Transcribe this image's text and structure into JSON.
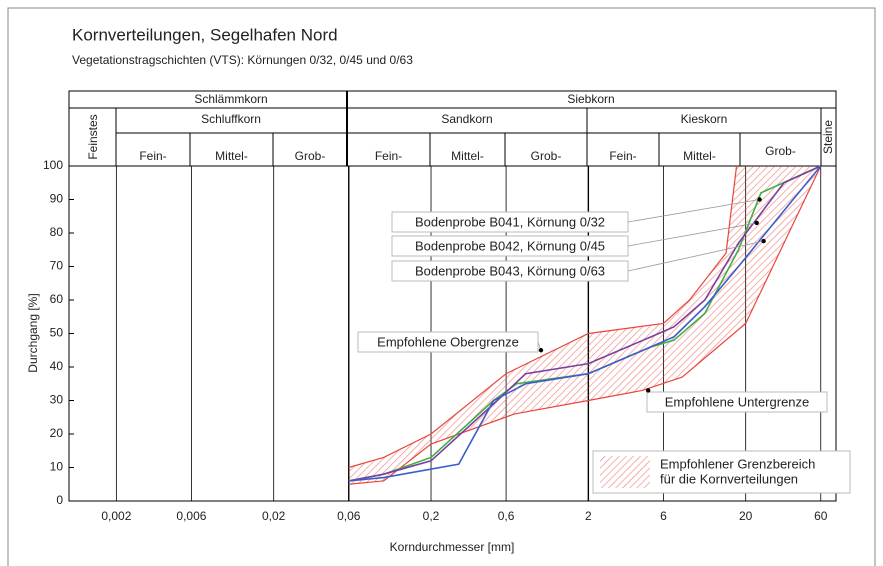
{
  "chart_data": {
    "type": "line",
    "title": "Kornverteilungen, Segelhafen Nord",
    "subtitle": "Vegetationstragschichten (VTS): Körnungen 0/32, 0/45 und 0/63",
    "x_label": "Korndurchmesser [mm]",
    "y_label": "Durchgang [%]",
    "x_log": true,
    "grid": "x",
    "xlim": [
      0.001,
      75
    ],
    "ylim": [
      0,
      100
    ],
    "xticks": [
      {
        "value": 0.002,
        "label": "0,002"
      },
      {
        "value": 0.006,
        "label": "0,006"
      },
      {
        "value": 0.02,
        "label": "0,02"
      },
      {
        "value": 0.06,
        "label": "0,06"
      },
      {
        "value": 0.2,
        "label": "0,2"
      },
      {
        "value": 0.6,
        "label": "0,6"
      },
      2,
      6,
      20,
      60
    ],
    "yticks": [
      0,
      10,
      20,
      30,
      40,
      50,
      60,
      70,
      80,
      90,
      100
    ],
    "header": {
      "feinstes": "Feinstes",
      "schlaemmkorn": "Schlämmkorn",
      "siebkorn": "Siebkorn",
      "schluffkorn": "Schluffkorn",
      "sandkorn": "Sandkorn",
      "kieskorn": "Kieskorn",
      "steine": "Steine",
      "subdivisions": [
        "Fein-",
        "Mittel-",
        "Grob-",
        "Fein-",
        "Mittel-",
        "Grob-",
        "Fein-",
        "Mittel-",
        "Grob-"
      ]
    },
    "legend_label": [
      "Empfohlener Grenzbereich",
      "für die Kornverteilungen"
    ],
    "band_color": "#e8453c",
    "series": [
      {
        "name": "Empfohlene Obergrenze",
        "color": "#e8453c",
        "x": [
          0.06,
          0.1,
          0.2,
          0.6,
          2,
          6,
          8.8,
          15,
          17.5
        ],
        "values": [
          10,
          13,
          20,
          38,
          50,
          53,
          60,
          74,
          100
        ],
        "label_point": {
          "x": 1,
          "y": 45
        }
      },
      {
        "name": "Empfohlene Untergrenze",
        "color": "#e8453c",
        "x": [
          0.06,
          0.1,
          0.2,
          0.68,
          2,
          4.4,
          7.9,
          20,
          60
        ],
        "values": [
          5,
          6,
          17,
          26,
          30,
          33,
          37,
          53,
          100
        ],
        "label_point": {
          "x": 4.8,
          "y": 33
        }
      },
      {
        "name": "Bodenprobe B041, Körnung 0/32",
        "color": "#3cb043",
        "x": [
          0.06,
          0.1,
          0.2,
          0.5,
          0.7,
          2,
          5,
          7,
          11,
          18,
          25,
          60
        ],
        "values": [
          6,
          8,
          13,
          30,
          35,
          38,
          46,
          48,
          56,
          75,
          92,
          100
        ],
        "label_point": {
          "x": 24.5,
          "y": 90
        }
      },
      {
        "name": "Bodenprobe B042, Körnung 0/45",
        "color": "#7b3fa0",
        "x": [
          0.06,
          0.1,
          0.2,
          0.5,
          0.8,
          2,
          5,
          7,
          11,
          18,
          35,
          60
        ],
        "values": [
          6,
          8,
          12,
          29,
          38,
          41,
          49,
          52,
          60,
          77,
          95,
          100
        ],
        "label_point": {
          "x": 23.5,
          "y": 83
        }
      },
      {
        "name": "Bodenprobe B043, Körnung 0/63",
        "color": "#3a5fcd",
        "x": [
          0.06,
          0.1,
          0.3,
          0.5,
          0.8,
          2,
          5,
          7,
          11,
          18,
          40,
          60
        ],
        "values": [
          6,
          7,
          11,
          30,
          35,
          38,
          46,
          49,
          58,
          70,
          90,
          100
        ],
        "label_point": {
          "x": 26,
          "y": 77.6
        }
      }
    ]
  }
}
